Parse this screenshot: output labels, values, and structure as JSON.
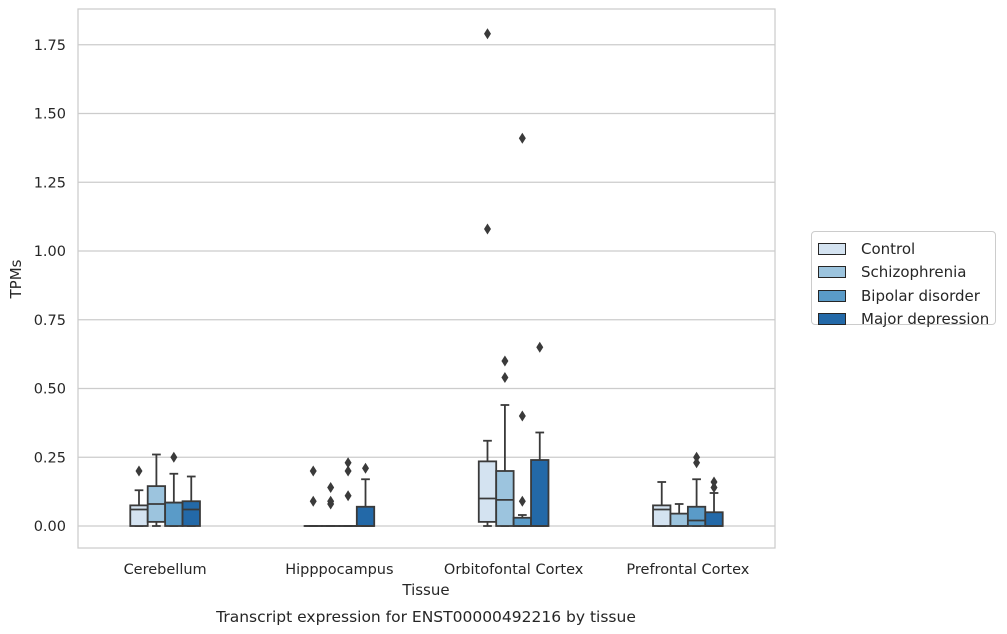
{
  "chart_data": {
    "type": "boxplot",
    "title": "Transcript expression for ENST00000492216 by tissue",
    "xlabel": "Tissue",
    "ylabel": "TPMs",
    "ylim": [
      -0.08,
      1.88
    ],
    "yticks": [
      "0.00",
      "0.25",
      "0.50",
      "0.75",
      "1.00",
      "1.25",
      "1.50",
      "1.75"
    ],
    "categories": [
      "Cerebellum",
      "Hipppocampus",
      "Orbitofontal Cortex",
      "Prefrontal Cortex"
    ],
    "grid": "horizontal",
    "legend_position": "right",
    "series": [
      {
        "name": "Control",
        "color": "#d4e3f1",
        "boxes": [
          {
            "q1": 0.0,
            "median": 0.06,
            "q3": 0.075,
            "whisker_low": 0.0,
            "whisker_high": 0.13,
            "outliers": [
              0.2
            ]
          },
          {
            "q1": 0.0,
            "median": 0.0,
            "q3": 0.0,
            "whisker_low": 0.0,
            "whisker_high": 0.0,
            "outliers": [
              0.09,
              0.2
            ]
          },
          {
            "q1": 0.015,
            "median": 0.1,
            "q3": 0.235,
            "whisker_low": 0.0,
            "whisker_high": 0.31,
            "outliers": [
              1.08,
              1.79
            ]
          },
          {
            "q1": 0.0,
            "median": 0.06,
            "q3": 0.075,
            "whisker_low": 0.0,
            "whisker_high": 0.16,
            "outliers": []
          }
        ]
      },
      {
        "name": "Schizophrenia",
        "color": "#9cc4de",
        "boxes": [
          {
            "q1": 0.015,
            "median": 0.08,
            "q3": 0.145,
            "whisker_low": 0.0,
            "whisker_high": 0.26,
            "outliers": []
          },
          {
            "q1": 0.0,
            "median": 0.0,
            "q3": 0.0,
            "whisker_low": 0.0,
            "whisker_high": 0.0,
            "outliers": [
              0.08,
              0.09,
              0.14
            ]
          },
          {
            "q1": 0.0,
            "median": 0.095,
            "q3": 0.2,
            "whisker_low": 0.0,
            "whisker_high": 0.44,
            "outliers": [
              0.54,
              0.6
            ]
          },
          {
            "q1": 0.0,
            "median": 0.0,
            "q3": 0.045,
            "whisker_low": 0.0,
            "whisker_high": 0.08,
            "outliers": []
          }
        ]
      },
      {
        "name": "Bipolar disorder",
        "color": "#5a9bc8",
        "boxes": [
          {
            "q1": 0.0,
            "median": 0.085,
            "q3": 0.085,
            "whisker_low": 0.0,
            "whisker_high": 0.19,
            "outliers": [
              0.25
            ]
          },
          {
            "q1": 0.0,
            "median": 0.0,
            "q3": 0.0,
            "whisker_low": 0.0,
            "whisker_high": 0.0,
            "outliers": [
              0.11,
              0.2,
              0.23
            ]
          },
          {
            "q1": 0.0,
            "median": 0.0,
            "q3": 0.03,
            "whisker_low": 0.0,
            "whisker_high": 0.04,
            "outliers": [
              0.09,
              0.4,
              1.41
            ]
          },
          {
            "q1": 0.0,
            "median": 0.02,
            "q3": 0.07,
            "whisker_low": 0.0,
            "whisker_high": 0.17,
            "outliers": [
              0.23,
              0.25
            ]
          }
        ]
      },
      {
        "name": "Major depression",
        "color": "#2369a8",
        "boxes": [
          {
            "q1": 0.0,
            "median": 0.06,
            "q3": 0.09,
            "whisker_low": 0.0,
            "whisker_high": 0.18,
            "outliers": []
          },
          {
            "q1": 0.0,
            "median": 0.0,
            "q3": 0.07,
            "whisker_low": 0.0,
            "whisker_high": 0.17,
            "outliers": [
              0.21
            ]
          },
          {
            "q1": 0.0,
            "median": 0.0,
            "q3": 0.24,
            "whisker_low": 0.0,
            "whisker_high": 0.34,
            "outliers": [
              0.65
            ]
          },
          {
            "q1": 0.0,
            "median": 0.0,
            "q3": 0.05,
            "whisker_low": 0.0,
            "whisker_high": 0.12,
            "outliers": [
              0.14,
              0.16
            ]
          }
        ]
      }
    ]
  }
}
